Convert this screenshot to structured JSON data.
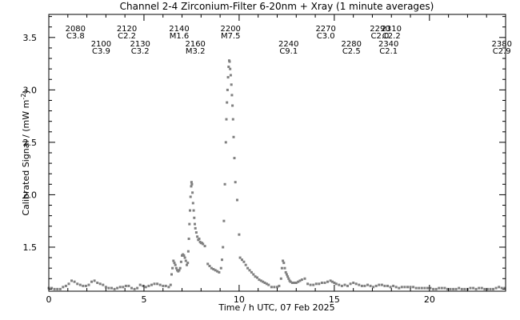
{
  "chart_data": {
    "type": "scatter",
    "title": "Channel 2-4   Zirconium-Filter   6-20nm + Xray   (1 minute averages)",
    "xlabel": "Time / h UTC, 07 Feb 2025",
    "ylabel": "Calibrated Signal / (mW m",
    "ylabel_sup": "-2",
    "ylabel_end": ")",
    "xlim": [
      0,
      24
    ],
    "ylim": [
      1.08,
      3.72
    ],
    "x_ticks": [
      0,
      5,
      10,
      15,
      20
    ],
    "x_tick_labels": [
      "0",
      "5",
      "10",
      "15",
      "20"
    ],
    "y_ticks": [
      1.5,
      2.0,
      2.5,
      3.0,
      3.5
    ],
    "y_tick_labels": [
      "1.5",
      "2.0",
      "2.5",
      "3.0",
      "3.5"
    ],
    "y_minor_ticks": [
      1.1,
      1.2,
      1.3,
      1.4,
      1.6,
      1.7,
      1.8,
      1.9,
      2.1,
      2.2,
      2.3,
      2.4,
      2.6,
      2.7,
      2.8,
      2.9,
      3.1,
      3.2,
      3.3,
      3.4,
      3.6,
      3.7
    ],
    "series_color": "#808080",
    "flares": [
      {
        "id": "2080",
        "cls": "C3.8",
        "x": 1.4,
        "row": 0
      },
      {
        "id": "2100",
        "cls": "C3.9",
        "x": 2.75,
        "row": 1
      },
      {
        "id": "2120",
        "cls": "C2.2",
        "x": 4.1,
        "row": 0
      },
      {
        "id": "2130",
        "cls": "C3.2",
        "x": 4.8,
        "row": 1
      },
      {
        "id": "2140",
        "cls": "M1.6",
        "x": 6.85,
        "row": 0
      },
      {
        "id": "2160",
        "cls": "M3.2",
        "x": 7.7,
        "row": 1
      },
      {
        "id": "2200",
        "cls": "M7.5",
        "x": 9.55,
        "row": 0
      },
      {
        "id": "2240",
        "cls": "C9.1",
        "x": 12.6,
        "row": 1
      },
      {
        "id": "2270",
        "cls": "C3.0",
        "x": 14.55,
        "row": 0
      },
      {
        "id": "2280",
        "cls": "C2.5",
        "x": 15.9,
        "row": 1
      },
      {
        "id": "2290",
        "cls": "C2.0",
        "x": 17.4,
        "row": 0
      },
      {
        "id": "2310",
        "cls": "C2.2",
        "x": 18.0,
        "row": 0
      },
      {
        "id": "2340",
        "cls": "C2.1",
        "x": 17.85,
        "row": 1
      },
      {
        "id": "2380",
        "cls": "C2.9",
        "x": 23.8,
        "row": 1
      }
    ],
    "points": [
      [
        0.0,
        1.11
      ],
      [
        0.15,
        1.11
      ],
      [
        0.3,
        1.1
      ],
      [
        0.45,
        1.1
      ],
      [
        0.6,
        1.1
      ],
      [
        0.75,
        1.12
      ],
      [
        0.9,
        1.13
      ],
      [
        1.05,
        1.15
      ],
      [
        1.2,
        1.18
      ],
      [
        1.35,
        1.17
      ],
      [
        1.5,
        1.15
      ],
      [
        1.65,
        1.14
      ],
      [
        1.8,
        1.13
      ],
      [
        1.95,
        1.13
      ],
      [
        2.1,
        1.14
      ],
      [
        2.25,
        1.17
      ],
      [
        2.4,
        1.18
      ],
      [
        2.55,
        1.16
      ],
      [
        2.7,
        1.15
      ],
      [
        2.85,
        1.14
      ],
      [
        3.0,
        1.12
      ],
      [
        3.15,
        1.11
      ],
      [
        3.3,
        1.11
      ],
      [
        3.45,
        1.1
      ],
      [
        3.6,
        1.11
      ],
      [
        3.75,
        1.12
      ],
      [
        3.9,
        1.12
      ],
      [
        4.05,
        1.13
      ],
      [
        4.2,
        1.13
      ],
      [
        4.35,
        1.11
      ],
      [
        4.5,
        1.1
      ],
      [
        4.65,
        1.11
      ],
      [
        4.8,
        1.14
      ],
      [
        4.95,
        1.13
      ],
      [
        5.1,
        1.12
      ],
      [
        5.25,
        1.13
      ],
      [
        5.4,
        1.14
      ],
      [
        5.55,
        1.15
      ],
      [
        5.7,
        1.15
      ],
      [
        5.85,
        1.14
      ],
      [
        6.0,
        1.13
      ],
      [
        6.15,
        1.13
      ],
      [
        6.3,
        1.12
      ],
      [
        6.4,
        1.14
      ],
      [
        6.45,
        1.24
      ],
      [
        6.5,
        1.3
      ],
      [
        6.55,
        1.37
      ],
      [
        6.6,
        1.35
      ],
      [
        6.65,
        1.33
      ],
      [
        6.7,
        1.3
      ],
      [
        6.75,
        1.28
      ],
      [
        6.8,
        1.27
      ],
      [
        6.85,
        1.28
      ],
      [
        6.9,
        1.3
      ],
      [
        6.95,
        1.36
      ],
      [
        7.0,
        1.42
      ],
      [
        7.05,
        1.43
      ],
      [
        7.1,
        1.42
      ],
      [
        7.15,
        1.4
      ],
      [
        7.2,
        1.37
      ],
      [
        7.25,
        1.33
      ],
      [
        7.3,
        1.35
      ],
      [
        7.33,
        1.46
      ],
      [
        7.36,
        1.58
      ],
      [
        7.39,
        1.72
      ],
      [
        7.42,
        1.85
      ],
      [
        7.45,
        1.98
      ],
      [
        7.48,
        2.08
      ],
      [
        7.5,
        2.12
      ],
      [
        7.52,
        2.1
      ],
      [
        7.55,
        2.02
      ],
      [
        7.58,
        1.92
      ],
      [
        7.61,
        1.85
      ],
      [
        7.64,
        1.78
      ],
      [
        7.67,
        1.72
      ],
      [
        7.7,
        1.68
      ],
      [
        7.75,
        1.64
      ],
      [
        7.8,
        1.6
      ],
      [
        7.85,
        1.57
      ],
      [
        7.9,
        1.58
      ],
      [
        7.95,
        1.55
      ],
      [
        8.0,
        1.54
      ],
      [
        8.05,
        1.54
      ],
      [
        8.1,
        1.53
      ],
      [
        8.2,
        1.51
      ],
      [
        8.35,
        1.34
      ],
      [
        8.45,
        1.32
      ],
      [
        8.55,
        1.3
      ],
      [
        8.65,
        1.29
      ],
      [
        8.75,
        1.28
      ],
      [
        8.85,
        1.27
      ],
      [
        8.95,
        1.26
      ],
      [
        9.05,
        1.3
      ],
      [
        9.1,
        1.38
      ],
      [
        9.15,
        1.5
      ],
      [
        9.2,
        1.75
      ],
      [
        9.25,
        2.1
      ],
      [
        9.3,
        2.5
      ],
      [
        9.33,
        2.72
      ],
      [
        9.36,
        2.88
      ],
      [
        9.39,
        3.0
      ],
      [
        9.42,
        3.12
      ],
      [
        9.45,
        3.22
      ],
      [
        9.48,
        3.28
      ],
      [
        9.5,
        3.27
      ],
      [
        9.53,
        3.2
      ],
      [
        9.56,
        3.14
      ],
      [
        9.59,
        3.05
      ],
      [
        9.62,
        2.95
      ],
      [
        9.65,
        2.85
      ],
      [
        9.68,
        2.72
      ],
      [
        9.71,
        2.55
      ],
      [
        9.75,
        2.35
      ],
      [
        9.8,
        2.12
      ],
      [
        9.9,
        1.95
      ],
      [
        10.0,
        1.62
      ],
      [
        10.05,
        1.4
      ],
      [
        10.15,
        1.38
      ],
      [
        10.25,
        1.36
      ],
      [
        10.35,
        1.33
      ],
      [
        10.45,
        1.3
      ],
      [
        10.55,
        1.28
      ],
      [
        10.65,
        1.26
      ],
      [
        10.75,
        1.24
      ],
      [
        10.85,
        1.22
      ],
      [
        10.95,
        1.21
      ],
      [
        11.05,
        1.19
      ],
      [
        11.15,
        1.18
      ],
      [
        11.25,
        1.17
      ],
      [
        11.35,
        1.16
      ],
      [
        11.45,
        1.15
      ],
      [
        11.55,
        1.14
      ],
      [
        11.7,
        1.12
      ],
      [
        11.85,
        1.12
      ],
      [
        12.0,
        1.12
      ],
      [
        12.1,
        1.13
      ],
      [
        12.2,
        1.2
      ],
      [
        12.25,
        1.3
      ],
      [
        12.3,
        1.37
      ],
      [
        12.35,
        1.35
      ],
      [
        12.4,
        1.3
      ],
      [
        12.45,
        1.26
      ],
      [
        12.5,
        1.24
      ],
      [
        12.55,
        1.22
      ],
      [
        12.6,
        1.2
      ],
      [
        12.65,
        1.18
      ],
      [
        12.7,
        1.17
      ],
      [
        12.8,
        1.16
      ],
      [
        12.9,
        1.16
      ],
      [
        13.0,
        1.16
      ],
      [
        13.1,
        1.17
      ],
      [
        13.2,
        1.18
      ],
      [
        13.3,
        1.19
      ],
      [
        13.45,
        1.2
      ],
      [
        13.6,
        1.15
      ],
      [
        13.75,
        1.14
      ],
      [
        13.9,
        1.14
      ],
      [
        14.05,
        1.15
      ],
      [
        14.2,
        1.15
      ],
      [
        14.35,
        1.16
      ],
      [
        14.5,
        1.16
      ],
      [
        14.65,
        1.17
      ],
      [
        14.8,
        1.18
      ],
      [
        14.9,
        1.17
      ],
      [
        15.0,
        1.16
      ],
      [
        15.1,
        1.15
      ],
      [
        15.25,
        1.14
      ],
      [
        15.4,
        1.13
      ],
      [
        15.55,
        1.14
      ],
      [
        15.7,
        1.13
      ],
      [
        15.85,
        1.15
      ],
      [
        16.0,
        1.16
      ],
      [
        16.15,
        1.15
      ],
      [
        16.3,
        1.14
      ],
      [
        16.45,
        1.13
      ],
      [
        16.6,
        1.13
      ],
      [
        16.75,
        1.14
      ],
      [
        16.9,
        1.13
      ],
      [
        17.05,
        1.12
      ],
      [
        17.2,
        1.13
      ],
      [
        17.35,
        1.14
      ],
      [
        17.5,
        1.14
      ],
      [
        17.65,
        1.13
      ],
      [
        17.8,
        1.13
      ],
      [
        17.95,
        1.12
      ],
      [
        18.1,
        1.13
      ],
      [
        18.25,
        1.12
      ],
      [
        18.4,
        1.11
      ],
      [
        18.55,
        1.12
      ],
      [
        18.7,
        1.12
      ],
      [
        18.85,
        1.12
      ],
      [
        19.0,
        1.12
      ],
      [
        19.15,
        1.12
      ],
      [
        19.3,
        1.11
      ],
      [
        19.45,
        1.11
      ],
      [
        19.6,
        1.11
      ],
      [
        19.75,
        1.11
      ],
      [
        19.9,
        1.11
      ],
      [
        20.05,
        1.11
      ],
      [
        20.2,
        1.1
      ],
      [
        20.35,
        1.1
      ],
      [
        20.5,
        1.11
      ],
      [
        20.65,
        1.11
      ],
      [
        20.8,
        1.11
      ],
      [
        20.95,
        1.1
      ],
      [
        21.1,
        1.1
      ],
      [
        21.25,
        1.1
      ],
      [
        21.4,
        1.1
      ],
      [
        21.55,
        1.11
      ],
      [
        21.7,
        1.1
      ],
      [
        21.85,
        1.1
      ],
      [
        22.0,
        1.1
      ],
      [
        22.15,
        1.11
      ],
      [
        22.3,
        1.11
      ],
      [
        22.45,
        1.1
      ],
      [
        22.6,
        1.11
      ],
      [
        22.75,
        1.11
      ],
      [
        22.9,
        1.1
      ],
      [
        23.05,
        1.1
      ],
      [
        23.2,
        1.1
      ],
      [
        23.35,
        1.1
      ],
      [
        23.5,
        1.11
      ],
      [
        23.65,
        1.12
      ],
      [
        23.8,
        1.11
      ],
      [
        23.95,
        1.11
      ]
    ]
  }
}
